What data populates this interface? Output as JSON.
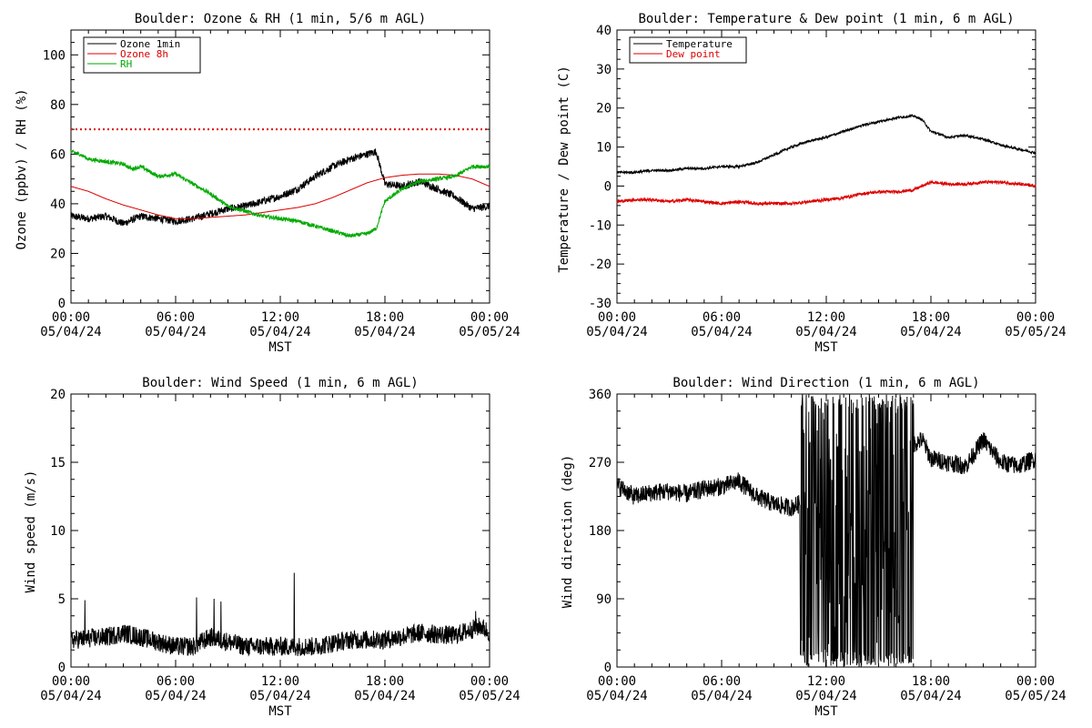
{
  "chart_data": [
    {
      "type": "line",
      "title": "Boulder: Ozone & RH (1 min, 5/6 m AGL)",
      "xlabel": "MST",
      "ylabel": "Ozone (ppbv) / RH (%)",
      "x_range": [
        "05/04/24 00:00",
        "05/05/24 00:00"
      ],
      "ylim": [
        0,
        110
      ],
      "y_ticks": [
        0,
        20,
        40,
        60,
        80,
        100
      ],
      "x_tick_hours": [
        0,
        6,
        12,
        18,
        24
      ],
      "x_tick_labels": [
        [
          "00:00",
          "05/04/24"
        ],
        [
          "06:00",
          "05/04/24"
        ],
        [
          "12:00",
          "05/04/24"
        ],
        [
          "18:00",
          "05/04/24"
        ],
        [
          "00:00",
          "05/05/24"
        ]
      ],
      "legend_position": "top-left",
      "reference_line": {
        "y": 70,
        "color": "#dd0000",
        "style": "dotted"
      },
      "series": [
        {
          "name": "Ozone 1min",
          "color": "#000000",
          "x_hours": [
            0,
            1,
            2,
            3,
            4,
            5,
            6,
            7,
            8,
            9,
            10,
            11,
            12,
            13,
            14,
            15,
            16,
            17,
            17.5,
            18,
            19,
            20,
            21,
            22,
            23,
            24
          ],
          "values": [
            35,
            34,
            35,
            32,
            35,
            34,
            33,
            34,
            36,
            38,
            39,
            41,
            43,
            46,
            51,
            55,
            58,
            60,
            61,
            48,
            47,
            49,
            46,
            43,
            38,
            39
          ],
          "noise": 1.5
        },
        {
          "name": "Ozone 8h",
          "color": "#dd0000",
          "x_hours": [
            0,
            1,
            2,
            3,
            4,
            5,
            6,
            7,
            8,
            9,
            10,
            11,
            12,
            13,
            14,
            15,
            16,
            17,
            18,
            19,
            20,
            21,
            22,
            23,
            24
          ],
          "values": [
            47,
            45,
            42,
            39.5,
            37.5,
            35.5,
            34,
            34,
            34.5,
            35,
            35.5,
            36.5,
            37.5,
            38.5,
            40,
            42.5,
            45.5,
            48.5,
            50.5,
            51.5,
            52,
            52,
            51.5,
            50,
            47
          ],
          "noise": 0
        },
        {
          "name": "RH",
          "color": "#00aa00",
          "x_hours": [
            0,
            0.5,
            1,
            2,
            3,
            3.5,
            4,
            5,
            6,
            7,
            8,
            9,
            10,
            11,
            12,
            13,
            14,
            15,
            16,
            17,
            17.5,
            18,
            19,
            20,
            21,
            22,
            23,
            24
          ],
          "values": [
            61,
            60,
            58,
            57,
            56,
            54,
            55,
            51,
            52,
            48,
            44,
            39,
            37,
            35,
            34,
            33,
            31,
            29,
            27,
            28,
            30,
            41,
            46,
            49,
            50,
            51,
            55,
            55
          ],
          "noise": 0.8
        }
      ]
    },
    {
      "type": "line",
      "title": "Boulder: Temperature & Dew point (1 min, 6 m AGL)",
      "xlabel": "MST",
      "ylabel": "Temperature / Dew point (C)",
      "x_range": [
        "05/04/24 00:00",
        "05/05/24 00:00"
      ],
      "ylim": [
        -30,
        40
      ],
      "y_ticks": [
        -30,
        -20,
        -10,
        0,
        10,
        20,
        30,
        40
      ],
      "x_tick_hours": [
        0,
        6,
        12,
        18,
        24
      ],
      "x_tick_labels": [
        [
          "00:00",
          "05/04/24"
        ],
        [
          "06:00",
          "05/04/24"
        ],
        [
          "12:00",
          "05/04/24"
        ],
        [
          "18:00",
          "05/04/24"
        ],
        [
          "00:00",
          "05/05/24"
        ]
      ],
      "legend_position": "top-left",
      "series": [
        {
          "name": "Temperature",
          "color": "#000000",
          "x_hours": [
            0,
            1,
            2,
            3,
            4,
            5,
            6,
            7,
            8,
            9,
            10,
            11,
            12,
            13,
            14,
            15,
            16,
            17,
            17.5,
            18,
            19,
            20,
            21,
            22,
            23,
            24
          ],
          "values": [
            3.5,
            3.5,
            4,
            4,
            4.5,
            4.5,
            5,
            5,
            6,
            8,
            10,
            11.5,
            12.5,
            14,
            15.5,
            16.5,
            17.5,
            18,
            17,
            14,
            12.5,
            13,
            12,
            10.5,
            9.5,
            8.5
          ],
          "noise": 0.3
        },
        {
          "name": "Dew point",
          "color": "#dd0000",
          "x_hours": [
            0,
            1,
            2,
            3,
            4,
            5,
            6,
            7,
            8,
            9,
            10,
            11,
            12,
            13,
            14,
            15,
            16,
            17,
            18,
            19,
            20,
            21,
            22,
            23,
            24
          ],
          "values": [
            -4,
            -3.5,
            -3.5,
            -4,
            -3.5,
            -4,
            -4.5,
            -4,
            -4.5,
            -4.5,
            -4.5,
            -4,
            -3.5,
            -3,
            -2,
            -1.5,
            -1.5,
            -1,
            1,
            0.5,
            0.5,
            1,
            1,
            0.5,
            0
          ],
          "noise": 0.4
        }
      ]
    },
    {
      "type": "line",
      "title": "Boulder: Wind Speed (1 min, 6 m AGL)",
      "xlabel": "MST",
      "ylabel": "Wind speed (m/s)",
      "x_range": [
        "05/04/24 00:00",
        "05/05/24 00:00"
      ],
      "ylim": [
        0,
        20
      ],
      "y_ticks": [
        0,
        5,
        10,
        15,
        20
      ],
      "x_tick_hours": [
        0,
        6,
        12,
        18,
        24
      ],
      "x_tick_labels": [
        [
          "00:00",
          "05/04/24"
        ],
        [
          "06:00",
          "05/04/24"
        ],
        [
          "12:00",
          "05/04/24"
        ],
        [
          "18:00",
          "05/04/24"
        ],
        [
          "00:00",
          "05/05/24"
        ]
      ],
      "series": [
        {
          "color": "#000000",
          "x_hours": [
            0,
            2,
            3,
            4,
            6,
            7,
            8,
            10,
            12,
            14,
            16,
            18,
            20,
            22,
            23.5,
            24
          ],
          "values": [
            2,
            2.2,
            2.5,
            2.2,
            1.5,
            1.5,
            2.2,
            1.5,
            1.5,
            1.5,
            2,
            2,
            2.5,
            2.3,
            3,
            2.5
          ],
          "noise": 0.7,
          "peaks": [
            {
              "x_hours": 12.8,
              "value": 6.9
            },
            {
              "x_hours": 7.2,
              "value": 5.1
            },
            {
              "x_hours": 8.2,
              "value": 5.0
            },
            {
              "x_hours": 0.8,
              "value": 4.9
            },
            {
              "x_hours": 8.6,
              "value": 4.8
            },
            {
              "x_hours": 23.2,
              "value": 4.1
            }
          ]
        }
      ]
    },
    {
      "type": "line",
      "title": "Boulder: Wind Direction (1 min, 6 m AGL)",
      "xlabel": "MST",
      "ylabel": "Wind direction (deg)",
      "x_range": [
        "05/04/24 00:00",
        "05/05/24 00:00"
      ],
      "ylim": [
        0,
        360
      ],
      "y_ticks": [
        0,
        90,
        180,
        270,
        360
      ],
      "x_tick_hours": [
        0,
        6,
        12,
        18,
        24
      ],
      "x_tick_labels": [
        [
          "00:00",
          "05/04/24"
        ],
        [
          "06:00",
          "05/04/24"
        ],
        [
          "12:00",
          "05/04/24"
        ],
        [
          "18:00",
          "05/04/24"
        ],
        [
          "00:00",
          "05/05/24"
        ]
      ],
      "series": [
        {
          "color": "#000000",
          "x_hours": [
            0,
            1,
            2,
            3,
            4,
            5,
            6,
            7,
            8,
            9,
            10,
            17.5,
            18,
            19,
            20,
            21,
            22,
            23,
            24
          ],
          "values": [
            240,
            225,
            230,
            232,
            228,
            235,
            238,
            245,
            225,
            215,
            210,
            300,
            275,
            270,
            265,
            300,
            270,
            265,
            275
          ],
          "noise": 12,
          "oscillation": {
            "start_hours": 10.5,
            "end_hours": 17.0,
            "low": 0,
            "high": 360
          }
        }
      ]
    }
  ]
}
